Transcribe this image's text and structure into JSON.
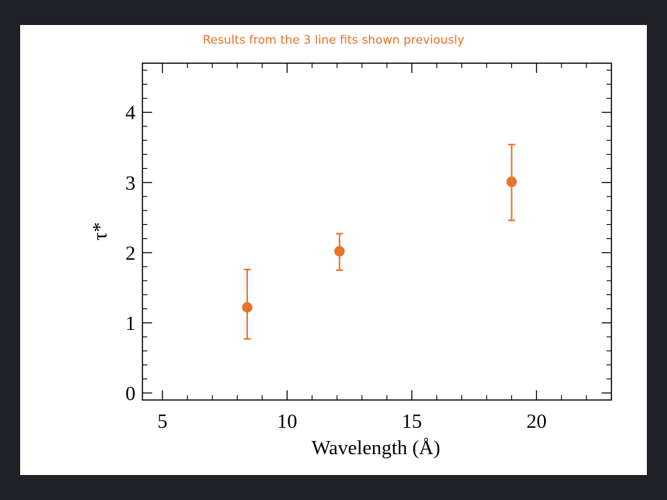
{
  "slide": {
    "title": "Results from the 3 line fits shown previously"
  },
  "chart_data": {
    "type": "scatter",
    "xlabel": "Wavelength (Å)",
    "ylabel": "τ*",
    "xlim": [
      4.2,
      23
    ],
    "ylim": [
      -0.1,
      4.7
    ],
    "x_ticks": [
      5,
      10,
      15,
      20
    ],
    "y_ticks": [
      0,
      1,
      2,
      3,
      4
    ],
    "grid": false,
    "marker_color": "#e8732a",
    "series": [
      {
        "points": [
          {
            "x": 8.4,
            "y": 1.22,
            "yerr_low": 0.77,
            "yerr_high": 1.76
          },
          {
            "x": 12.1,
            "y": 2.02,
            "yerr_low": 1.75,
            "yerr_high": 2.27
          },
          {
            "x": 19.0,
            "y": 3.01,
            "yerr_low": 2.46,
            "yerr_high": 3.54
          }
        ]
      }
    ]
  }
}
